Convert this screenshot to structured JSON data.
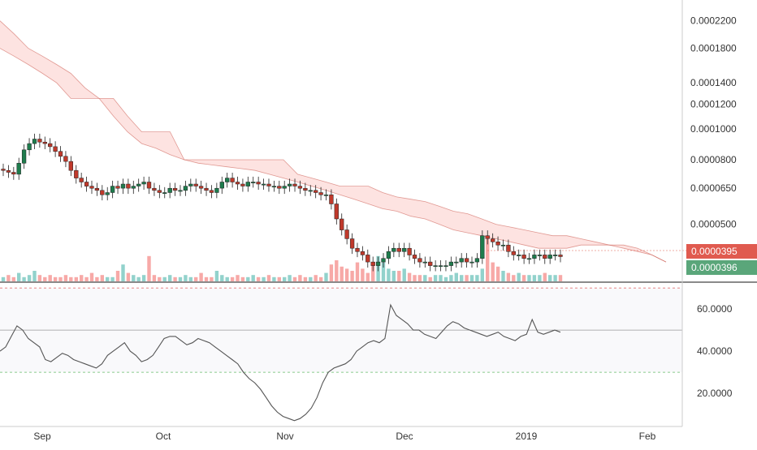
{
  "chart_data": [
    {
      "type": "candlestick",
      "panel": "price",
      "scale": "log",
      "title": "",
      "ylim": [
        3.3e-05,
        0.00025
      ],
      "y_ticks": [
        "0.0002200",
        "0.0001800",
        "0.0001400",
        "0.0001200",
        "0.0001000",
        "0.0000800",
        "0.0000650",
        "0.0000500"
      ],
      "price_labels": [
        {
          "value": "0.0000395",
          "color": "#e05a4f"
        },
        {
          "value": "0.0000396",
          "color": "#5aa67a"
        }
      ],
      "close": [
        7.4e-05,
        7.3e-05,
        7.2e-05,
        7.8e-05,
        8.6e-05,
        9e-05,
        9.3e-05,
        9.1e-05,
        9e-05,
        8.8e-05,
        8.5e-05,
        8.2e-05,
        7.9e-05,
        7.4e-05,
        7e-05,
        6.8e-05,
        6.6e-05,
        6.5e-05,
        6.4e-05,
        6.2e-05,
        6.3e-05,
        6.6e-05,
        6.5e-05,
        6.7e-05,
        6.5e-05,
        6.6e-05,
        6.7e-05,
        6.8e-05,
        6.5e-05,
        6.4e-05,
        6.3e-05,
        6.3e-05,
        6.5e-05,
        6.4e-05,
        6.4e-05,
        6.6e-05,
        6.7e-05,
        6.6e-05,
        6.5e-05,
        6.4e-05,
        6.3e-05,
        6.5e-05,
        6.8e-05,
        7e-05,
        6.8e-05,
        6.7e-05,
        6.6e-05,
        6.8e-05,
        6.8e-05,
        6.7e-05,
        6.7e-05,
        6.6e-05,
        6.6e-05,
        6.5e-05,
        6.6e-05,
        6.7e-05,
        6.6e-05,
        6.5e-05,
        6.4e-05,
        6.4e-05,
        6.3e-05,
        6.2e-05,
        6.2e-05,
        5.8e-05,
        5.2e-05,
        4.8e-05,
        4.5e-05,
        4.2e-05,
        4.1e-05,
        4e-05,
        3.8e-05,
        3.7e-05,
        3.8e-05,
        3.9e-05,
        4.1e-05,
        4.2e-05,
        4.1e-05,
        4.2e-05,
        4e-05,
        3.9e-05,
        3.8e-05,
        3.8e-05,
        3.7e-05,
        3.7e-05,
        3.7e-05,
        3.7e-05,
        3.8e-05,
        3.8e-05,
        3.9e-05,
        3.8e-05,
        3.8e-05,
        3.9e-05,
        4.6e-05,
        4.5e-05,
        4.4e-05,
        4.3e-05,
        4.3e-05,
        4.1e-05,
        4e-05,
        4e-05,
        3.9e-05,
        3.9e-05,
        4e-05,
        4e-05,
        3.9e-05,
        4e-05,
        4e-05,
        3.95e-05
      ],
      "ichimoku_cloud": {
        "span_a": [
          0.00022,
          0.0002,
          0.00018,
          0.00017,
          0.00016,
          0.00015,
          0.000135,
          0.000125,
          0.00011,
          9.8e-05,
          9e-05,
          8.7e-05,
          8.3e-05,
          8e-05,
          7.8e-05,
          7.7e-05,
          7.6e-05,
          7.5e-05,
          7.4e-05,
          7.2e-05,
          7e-05,
          6.8e-05,
          6.6e-05,
          6.4e-05,
          6.2e-05,
          6e-05,
          5.8e-05,
          5.6e-05,
          5.5e-05,
          5.3e-05,
          5.2e-05,
          5e-05,
          4.8e-05,
          4.7e-05,
          4.6e-05,
          4.5e-05,
          4.4e-05,
          4.3e-05,
          4.2e-05,
          4.2e-05,
          4.2e-05,
          4.3e-05,
          4.3e-05,
          4.3e-05,
          4.3e-05,
          4.2e-05,
          4e-05,
          3.8e-05
        ],
        "span_b": [
          0.00018,
          0.00017,
          0.00016,
          0.00015,
          0.00014,
          0.000125,
          0.000125,
          0.000125,
          0.000125,
          0.00011,
          9.8e-05,
          9.8e-05,
          9.8e-05,
          8e-05,
          8e-05,
          8e-05,
          8e-05,
          8e-05,
          8e-05,
          8e-05,
          8e-05,
          7.2e-05,
          7e-05,
          6.8e-05,
          6.6e-05,
          6.6e-05,
          6.6e-05,
          6.3e-05,
          6.1e-05,
          6e-05,
          5.9e-05,
          5.7e-05,
          5.5e-05,
          5.4e-05,
          5.2e-05,
          5e-05,
          4.9e-05,
          4.8e-05,
          4.7e-05,
          4.6e-05,
          4.6e-05,
          4.5e-05,
          4.4e-05,
          4.3e-05,
          4.2e-05,
          4.1e-05,
          4e-05,
          3.8e-05
        ]
      },
      "volume": [
        2,
        3,
        2,
        4,
        2,
        3,
        5,
        3,
        2,
        3,
        2,
        2,
        3,
        2,
        2,
        3,
        2,
        4,
        2,
        3,
        2,
        2,
        5,
        8,
        4,
        3,
        2,
        3,
        12,
        3,
        2,
        2,
        3,
        2,
        2,
        3,
        2,
        2,
        4,
        2,
        2,
        5,
        3,
        2,
        2,
        3,
        2,
        2,
        3,
        2,
        2,
        3,
        2,
        2,
        2,
        3,
        2,
        3,
        2,
        2,
        3,
        2,
        4,
        8,
        10,
        7,
        6,
        5,
        9,
        6,
        4,
        8,
        12,
        9,
        6,
        5,
        5,
        6,
        4,
        3,
        3,
        3,
        2,
        3,
        3,
        2,
        3,
        4,
        3,
        3,
        3,
        3,
        6,
        20,
        9,
        7,
        5,
        4,
        3,
        4,
        3,
        3,
        3,
        3,
        4,
        3,
        3,
        3
      ],
      "x_ticks": [
        "Sep",
        "Oct",
        "Nov",
        "Dec",
        "2019",
        "Feb"
      ]
    },
    {
      "type": "line",
      "panel": "rsi",
      "title": "",
      "ylim": [
        5,
        72
      ],
      "y_ticks": [
        "60.0000",
        "40.0000",
        "20.0000"
      ],
      "bands": {
        "upper": 70,
        "middle": 50,
        "lower": 30
      },
      "values": [
        40,
        42,
        47,
        52,
        50,
        46,
        44,
        42,
        36,
        35,
        37,
        39,
        38,
        36,
        35,
        34,
        33,
        32,
        34,
        38,
        40,
        42,
        44,
        40,
        38,
        35,
        36,
        38,
        42,
        46,
        47,
        47,
        45,
        43,
        44,
        46,
        45,
        44,
        42,
        40,
        38,
        36,
        34,
        30,
        27,
        25,
        22,
        18,
        14,
        11,
        9,
        8,
        7,
        8,
        10,
        13,
        18,
        25,
        30,
        32,
        33,
        34,
        36,
        40,
        42,
        44,
        45,
        44,
        46,
        62,
        57,
        55,
        53,
        50,
        50,
        48,
        47,
        46,
        49,
        52,
        54,
        53,
        51,
        50,
        49,
        48,
        47,
        48,
        49,
        47,
        46,
        45,
        47,
        48,
        55,
        49,
        48,
        49,
        50,
        49
      ]
    }
  ]
}
